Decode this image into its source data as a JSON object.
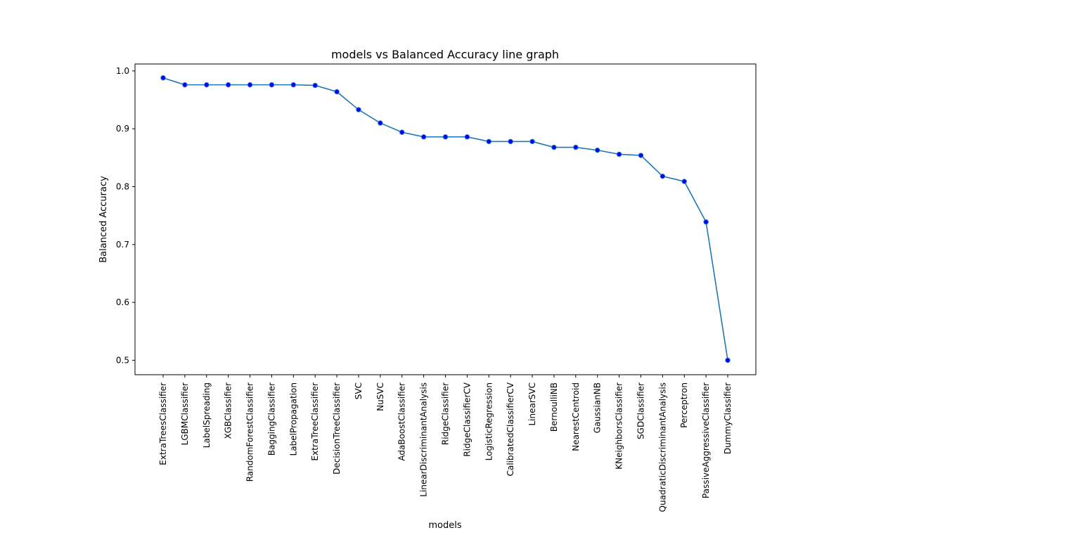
{
  "chart_data": {
    "type": "line",
    "title": "models vs Balanced Accuracy line graph",
    "xlabel": "models",
    "ylabel": "Balanced Accuracy",
    "ylim": [
      0.475,
      1.012
    ],
    "yticks": [
      "0.5",
      "0.6",
      "0.7",
      "0.8",
      "0.9",
      "1.0"
    ],
    "grid": false,
    "categories": [
      "ExtraTreesClassifier",
      "LGBMClassifier",
      "LabelSpreading",
      "XGBClassifier",
      "RandomForestClassifier",
      "BaggingClassifier",
      "LabelPropagation",
      "ExtraTreeClassifier",
      "DecisionTreeClassifier",
      "SVC",
      "NuSVC",
      "AdaBoostClassifier",
      "LinearDiscriminantAnalysis",
      "RidgeClassifier",
      "RidgeClassifierCV",
      "LogisticRegression",
      "CalibratedClassifierCV",
      "LinearSVC",
      "BernoulliNB",
      "NearestCentroid",
      "GaussianNB",
      "KNeighborsClassifier",
      "SGDClassifier",
      "QuadraticDiscriminantAnalysis",
      "Perceptron",
      "PassiveAggressiveClassifier",
      "DummyClassifier"
    ],
    "series": [
      {
        "values": [
          0.988,
          0.976,
          0.976,
          0.976,
          0.976,
          0.976,
          0.976,
          0.975,
          0.964,
          0.933,
          0.91,
          0.894,
          0.886,
          0.886,
          0.886,
          0.878,
          0.878,
          0.878,
          0.868,
          0.868,
          0.863,
          0.856,
          0.854,
          0.818,
          0.809,
          0.739,
          0.5
        ],
        "color": "#1f77b4",
        "marker_color": "#0000ff"
      }
    ]
  }
}
